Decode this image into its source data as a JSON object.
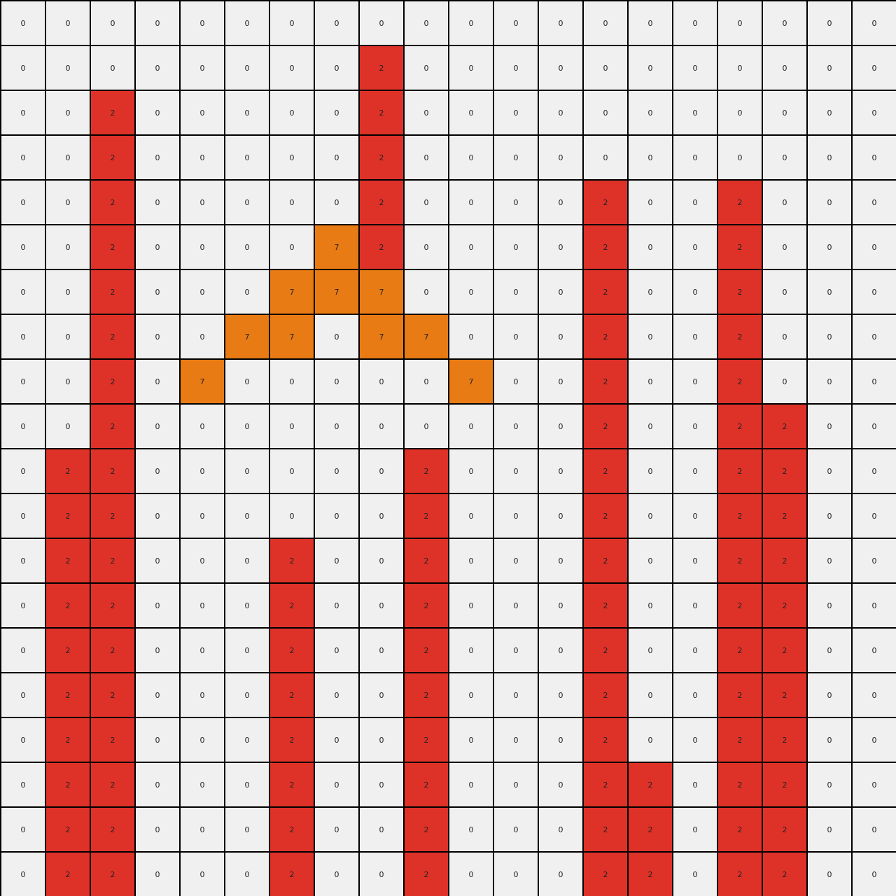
{
  "colors": {
    "0": "#f0f0f0",
    "2": "#de3229",
    "7": "#e87b14"
  },
  "grid": [
    [
      0,
      0,
      0,
      0,
      0,
      0,
      0,
      0,
      0,
      0,
      0,
      0,
      0,
      0,
      0,
      0,
      0,
      0,
      0,
      0
    ],
    [
      0,
      0,
      0,
      0,
      0,
      0,
      0,
      0,
      2,
      0,
      0,
      0,
      0,
      0,
      0,
      0,
      0,
      0,
      0,
      0
    ],
    [
      0,
      0,
      2,
      0,
      0,
      0,
      0,
      0,
      2,
      0,
      0,
      0,
      0,
      0,
      0,
      0,
      0,
      0,
      0,
      0
    ],
    [
      0,
      0,
      2,
      0,
      0,
      0,
      0,
      0,
      2,
      0,
      0,
      0,
      0,
      0,
      0,
      0,
      0,
      0,
      0,
      0
    ],
    [
      0,
      0,
      2,
      0,
      0,
      0,
      0,
      0,
      2,
      0,
      0,
      0,
      0,
      2,
      0,
      0,
      2,
      0,
      0,
      0
    ],
    [
      0,
      0,
      2,
      0,
      0,
      0,
      0,
      7,
      2,
      0,
      0,
      0,
      0,
      2,
      0,
      0,
      2,
      0,
      0,
      0
    ],
    [
      0,
      0,
      2,
      0,
      0,
      0,
      7,
      7,
      7,
      0,
      0,
      0,
      0,
      2,
      0,
      0,
      2,
      0,
      0,
      0
    ],
    [
      0,
      0,
      2,
      0,
      0,
      7,
      7,
      0,
      7,
      7,
      0,
      0,
      0,
      2,
      0,
      0,
      2,
      0,
      0,
      0
    ],
    [
      0,
      0,
      2,
      0,
      7,
      0,
      0,
      0,
      0,
      0,
      7,
      0,
      0,
      2,
      0,
      0,
      2,
      0,
      0,
      0
    ],
    [
      0,
      0,
      2,
      0,
      0,
      0,
      0,
      0,
      0,
      0,
      0,
      0,
      0,
      2,
      0,
      0,
      2,
      2,
      0,
      0
    ],
    [
      0,
      2,
      2,
      0,
      0,
      0,
      0,
      0,
      0,
      2,
      0,
      0,
      0,
      2,
      0,
      0,
      2,
      2,
      0,
      0
    ],
    [
      0,
      2,
      2,
      0,
      0,
      0,
      0,
      0,
      0,
      2,
      0,
      0,
      0,
      2,
      0,
      0,
      2,
      2,
      0,
      0
    ],
    [
      0,
      2,
      2,
      0,
      0,
      0,
      2,
      0,
      0,
      2,
      0,
      0,
      0,
      2,
      0,
      0,
      2,
      2,
      0,
      0
    ],
    [
      0,
      2,
      2,
      0,
      0,
      0,
      2,
      0,
      0,
      2,
      0,
      0,
      0,
      2,
      0,
      0,
      2,
      2,
      0,
      0
    ],
    [
      0,
      2,
      2,
      0,
      0,
      0,
      2,
      0,
      0,
      2,
      0,
      0,
      0,
      2,
      0,
      0,
      2,
      2,
      0,
      0
    ],
    [
      0,
      2,
      2,
      0,
      0,
      0,
      2,
      0,
      0,
      2,
      0,
      0,
      0,
      2,
      0,
      0,
      2,
      2,
      0,
      0
    ],
    [
      0,
      2,
      2,
      0,
      0,
      0,
      2,
      0,
      0,
      2,
      0,
      0,
      0,
      2,
      0,
      0,
      2,
      2,
      0,
      0
    ],
    [
      0,
      2,
      2,
      0,
      0,
      0,
      2,
      0,
      0,
      2,
      0,
      0,
      0,
      2,
      2,
      0,
      2,
      2,
      0,
      0
    ],
    [
      0,
      2,
      2,
      0,
      0,
      0,
      2,
      0,
      0,
      2,
      0,
      0,
      0,
      2,
      2,
      0,
      2,
      2,
      0,
      0
    ],
    [
      0,
      2,
      2,
      0,
      0,
      0,
      2,
      0,
      0,
      2,
      0,
      0,
      0,
      2,
      2,
      0,
      2,
      2,
      0,
      0
    ]
  ]
}
